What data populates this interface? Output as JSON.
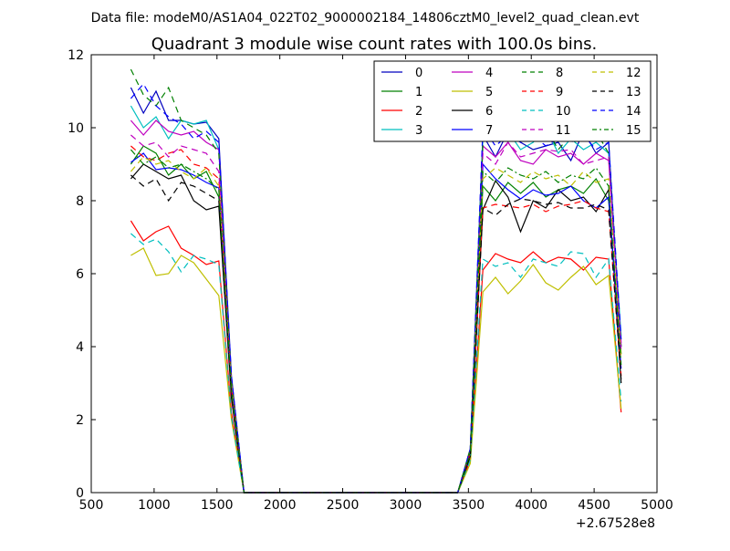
{
  "header": {
    "file_label": "Data file: modeM0/AS1A04_022T02_9000002184_14806cztM0_level2_quad_clean.evt"
  },
  "chart_data": {
    "type": "line",
    "title": "Quadrant 3 module wise count rates with 100.0s bins.",
    "xlabel": "",
    "ylabel": "",
    "offset_label": "+2.67528e8",
    "xlim": [
      500,
      5000
    ],
    "ylim": [
      0,
      12
    ],
    "xticks": [
      500,
      1000,
      1500,
      2000,
      2500,
      3000,
      3500,
      4000,
      4500,
      5000
    ],
    "yticks": [
      0,
      2,
      4,
      6,
      8,
      10,
      12
    ],
    "grid": false,
    "legend_position": "top-right",
    "x": [
      815,
      915,
      1015,
      1115,
      1215,
      1315,
      1415,
      1515,
      1615,
      1715,
      1815,
      1915,
      2015,
      2115,
      2215,
      2315,
      2415,
      2515,
      2615,
      2715,
      2815,
      2915,
      3015,
      3115,
      3215,
      3315,
      3415,
      3515,
      3615,
      3715,
      3815,
      3915,
      4015,
      4115,
      4215,
      4315,
      4415,
      4515,
      4615,
      4715
    ],
    "series": [
      {
        "name": "0",
        "color": "#0000bf",
        "dash": "solid",
        "values": [
          11.1,
          10.4,
          11.0,
          10.2,
          10.2,
          10.1,
          10.15,
          9.7,
          3.2,
          0.0,
          0,
          0,
          0,
          0,
          0,
          0,
          0,
          0,
          0,
          0,
          0,
          0,
          0,
          0,
          0,
          0,
          0.0,
          1.2,
          9.8,
          9.2,
          9.9,
          9.6,
          9.4,
          9.5,
          9.6,
          9.1,
          9.9,
          9.3,
          9.6,
          4.0
        ]
      },
      {
        "name": "1",
        "color": "#008000",
        "dash": "solid",
        "values": [
          9.0,
          9.5,
          9.3,
          8.7,
          9.0,
          8.6,
          8.8,
          8.1,
          2.8,
          0.0,
          0,
          0,
          0,
          0,
          0,
          0,
          0,
          0,
          0,
          0,
          0,
          0,
          0,
          0,
          0,
          0,
          0.0,
          1.1,
          8.4,
          8.0,
          8.5,
          8.2,
          8.5,
          8.1,
          8.3,
          8.4,
          8.2,
          8.6,
          8.0,
          3.8
        ]
      },
      {
        "name": "2",
        "color": "#ff0000",
        "dash": "solid",
        "values": [
          7.45,
          6.9,
          7.15,
          7.3,
          6.7,
          6.5,
          6.25,
          6.35,
          2.2,
          0.0,
          0,
          0,
          0,
          0,
          0,
          0,
          0,
          0,
          0,
          0,
          0,
          0,
          0,
          0,
          0,
          0,
          0.0,
          0.9,
          6.1,
          6.55,
          6.4,
          6.3,
          6.6,
          6.3,
          6.45,
          6.4,
          6.1,
          6.45,
          6.4,
          2.2
        ]
      },
      {
        "name": "3",
        "color": "#00bfbf",
        "dash": "solid",
        "values": [
          10.6,
          10.0,
          10.3,
          9.7,
          10.2,
          10.1,
          10.2,
          9.4,
          3.1,
          0.0,
          0,
          0,
          0,
          0,
          0,
          0,
          0,
          0,
          0,
          0,
          0,
          0,
          0,
          0,
          0,
          0,
          0.0,
          1.2,
          9.7,
          10.3,
          9.9,
          9.4,
          9.6,
          10.0,
          9.3,
          9.7,
          9.4,
          9.6,
          9.3,
          4.3
        ]
      },
      {
        "name": "4",
        "color": "#bf00bf",
        "dash": "solid",
        "values": [
          10.2,
          9.8,
          10.2,
          9.9,
          9.8,
          9.9,
          9.6,
          9.4,
          3.1,
          0.0,
          0,
          0,
          0,
          0,
          0,
          0,
          0,
          0,
          0,
          0,
          0,
          0,
          0,
          0,
          0,
          0,
          0.0,
          1.2,
          9.5,
          9.2,
          9.6,
          9.1,
          9.0,
          9.4,
          9.2,
          9.3,
          9.0,
          9.3,
          9.1,
          4.1
        ]
      },
      {
        "name": "5",
        "color": "#bfbf00",
        "dash": "solid",
        "values": [
          6.5,
          6.7,
          5.95,
          6.0,
          6.5,
          6.3,
          5.85,
          5.4,
          2.0,
          0.0,
          0,
          0,
          0,
          0,
          0,
          0,
          0,
          0,
          0,
          0,
          0,
          0,
          0,
          0,
          0,
          0,
          0.0,
          0.8,
          5.5,
          5.9,
          5.45,
          5.8,
          6.25,
          5.75,
          5.55,
          5.9,
          6.2,
          5.7,
          5.95,
          2.3
        ]
      },
      {
        "name": "6",
        "color": "#000000",
        "dash": "solid",
        "values": [
          8.6,
          9.0,
          8.8,
          8.6,
          8.7,
          8.0,
          7.75,
          7.85,
          2.6,
          0.0,
          0,
          0,
          0,
          0,
          0,
          0,
          0,
          0,
          0,
          0,
          0,
          0,
          0,
          0,
          0,
          0,
          0.0,
          1.0,
          7.75,
          8.55,
          8.1,
          7.15,
          8.0,
          7.8,
          8.3,
          8.0,
          8.1,
          7.7,
          8.3,
          3.0
        ]
      },
      {
        "name": "7",
        "color": "#0000ff",
        "dash": "solid",
        "values": [
          9.05,
          9.3,
          8.85,
          8.9,
          8.85,
          8.7,
          8.5,
          8.35,
          2.8,
          0.0,
          0,
          0,
          0,
          0,
          0,
          0,
          0,
          0,
          0,
          0,
          0,
          0,
          0,
          0,
          0,
          0,
          0.0,
          1.1,
          9.0,
          8.6,
          8.3,
          8.05,
          8.3,
          8.15,
          8.2,
          8.4,
          8.0,
          7.8,
          8.1,
          3.4
        ]
      },
      {
        "name": "8",
        "color": "#008000",
        "dash": "dashed",
        "values": [
          11.6,
          10.9,
          10.6,
          11.1,
          10.2,
          10.0,
          9.8,
          9.3,
          3.1,
          0.0,
          0,
          0,
          0,
          0,
          0,
          0,
          0,
          0,
          0,
          0,
          0,
          0,
          0,
          0,
          0,
          0,
          0.0,
          1.2,
          9.6,
          9.9,
          9.6,
          10.0,
          9.7,
          10.0,
          9.4,
          9.8,
          9.7,
          9.9,
          9.3,
          4.0
        ]
      },
      {
        "name": "9",
        "color": "#ff0000",
        "dash": "dashed",
        "values": [
          9.5,
          9.2,
          9.1,
          9.3,
          9.4,
          9.0,
          8.9,
          8.6,
          2.9,
          0.0,
          0,
          0,
          0,
          0,
          0,
          0,
          0,
          0,
          0,
          0,
          0,
          0,
          0,
          0,
          0,
          0,
          0.0,
          1.1,
          7.8,
          7.9,
          7.85,
          7.8,
          7.9,
          7.7,
          7.85,
          7.9,
          8.0,
          7.8,
          7.7,
          3.2
        ]
      },
      {
        "name": "10",
        "color": "#00bfbf",
        "dash": "dashed",
        "values": [
          7.1,
          6.8,
          6.95,
          6.6,
          6.05,
          6.5,
          6.4,
          6.25,
          2.1,
          0.0,
          0,
          0,
          0,
          0,
          0,
          0,
          0,
          0,
          0,
          0,
          0,
          0,
          0,
          0,
          0,
          0,
          0.0,
          0.9,
          6.4,
          6.2,
          6.3,
          5.9,
          6.4,
          6.3,
          6.2,
          6.6,
          6.55,
          5.9,
          6.4,
          2.5
        ]
      },
      {
        "name": "11",
        "color": "#bf00bf",
        "dash": "dashed",
        "values": [
          9.8,
          9.5,
          9.6,
          9.2,
          9.5,
          9.4,
          9.3,
          8.8,
          3.0,
          0.0,
          0,
          0,
          0,
          0,
          0,
          0,
          0,
          0,
          0,
          0,
          0,
          0,
          0,
          0,
          0,
          0,
          0.0,
          1.1,
          9.3,
          9.0,
          9.6,
          9.2,
          9.3,
          9.4,
          9.35,
          9.4,
          9.0,
          9.1,
          9.2,
          3.9
        ]
      },
      {
        "name": "12",
        "color": "#bfbf00",
        "dash": "dashed",
        "values": [
          8.8,
          9.2,
          9.0,
          9.1,
          8.8,
          8.6,
          8.9,
          8.4,
          2.9,
          0.0,
          0,
          0,
          0,
          0,
          0,
          0,
          0,
          0,
          0,
          0,
          0,
          0,
          0,
          0,
          0,
          0,
          0.0,
          1.0,
          8.6,
          8.9,
          8.7,
          8.5,
          8.8,
          8.6,
          8.7,
          8.4,
          8.8,
          8.5,
          8.6,
          3.7
        ]
      },
      {
        "name": "13",
        "color": "#000000",
        "dash": "dashed",
        "values": [
          8.7,
          8.4,
          8.6,
          8.0,
          8.5,
          8.4,
          8.2,
          8.0,
          2.7,
          0.0,
          0,
          0,
          0,
          0,
          0,
          0,
          0,
          0,
          0,
          0,
          0,
          0,
          0,
          0,
          0,
          0,
          0.0,
          1.0,
          7.8,
          7.6,
          7.9,
          8.05,
          8.0,
          7.9,
          7.95,
          7.8,
          7.8,
          7.9,
          7.75,
          3.1
        ]
      },
      {
        "name": "14",
        "color": "#0000ff",
        "dash": "dashed",
        "values": [
          10.8,
          11.2,
          10.6,
          10.3,
          10.1,
          9.7,
          9.9,
          9.6,
          3.2,
          0.0,
          0,
          0,
          0,
          0,
          0,
          0,
          0,
          0,
          0,
          0,
          0,
          0,
          0,
          0,
          0,
          0,
          0.0,
          1.2,
          10.0,
          9.5,
          9.8,
          9.6,
          9.8,
          9.5,
          9.7,
          9.6,
          9.8,
          9.4,
          9.6,
          4.2
        ]
      },
      {
        "name": "15",
        "color": "#008000",
        "dash": "dashdot",
        "values": [
          9.4,
          9.0,
          9.2,
          8.9,
          9.0,
          8.8,
          8.6,
          8.3,
          2.8,
          0.0,
          0,
          0,
          0,
          0,
          0,
          0,
          0,
          0,
          0,
          0,
          0,
          0,
          0,
          0,
          0,
          0,
          0.0,
          1.1,
          8.8,
          8.5,
          8.9,
          8.7,
          8.6,
          8.8,
          8.5,
          8.7,
          8.6,
          8.9,
          8.4,
          3.5
        ]
      }
    ]
  }
}
